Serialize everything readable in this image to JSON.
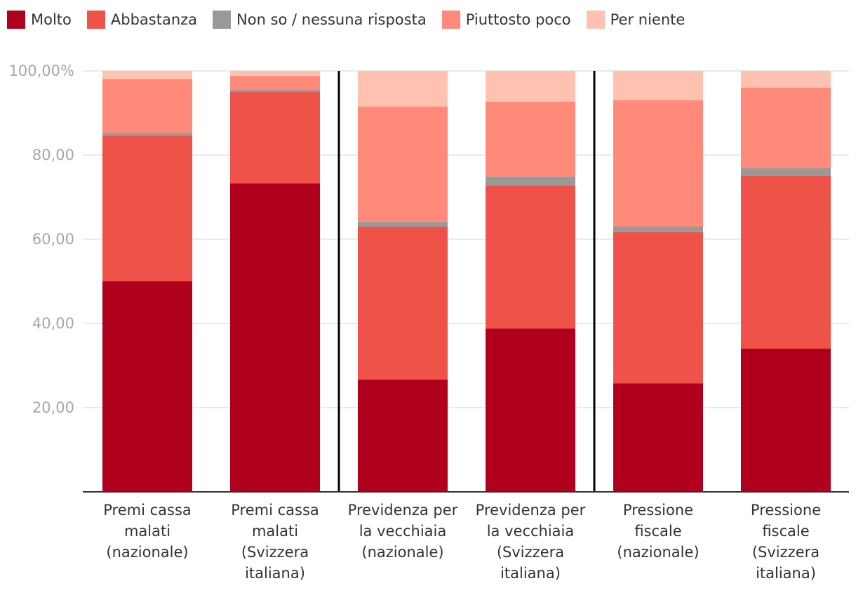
{
  "chart_data": {
    "type": "bar",
    "stacked": true,
    "categories": [
      [
        "Premi cassa",
        "malati",
        "(nazionale)"
      ],
      [
        "Premi cassa",
        "malati",
        "(Svizzera",
        "italiana)"
      ],
      [
        "Previdenza per",
        "la vecchiaia",
        "(nazionale)"
      ],
      [
        "Previdenza per",
        "la vecchiaia",
        "(Svizzera",
        "italiana)"
      ],
      [
        "Pressione",
        "fiscale",
        "(nazionale)"
      ],
      [
        "Pressione",
        "fiscale",
        "(Svizzera",
        "italiana)"
      ]
    ],
    "series": [
      {
        "name": "Molto",
        "color": "#b0001e",
        "values": [
          50.0,
          73.3,
          26.7,
          38.8,
          25.8,
          34.0
        ]
      },
      {
        "name": "Abbastanza",
        "color": "#ee5249",
        "values": [
          34.6,
          21.7,
          36.3,
          34.0,
          35.9,
          41.0
        ]
      },
      {
        "name": "Non so / nessuna risposta",
        "color": "#999999",
        "values": [
          0.7,
          0.6,
          1.2,
          2.1,
          1.3,
          1.9
        ]
      },
      {
        "name": "Piuttosto poco",
        "color": "#ff8a7a",
        "values": [
          12.7,
          3.2,
          27.3,
          17.8,
          30.0,
          19.1
        ]
      },
      {
        "name": "Per niente",
        "color": "#ffc2b0",
        "values": [
          2.0,
          1.2,
          8.5,
          7.3,
          7.0,
          4.0
        ]
      }
    ],
    "legend_order": [
      0,
      1,
      2,
      3,
      4
    ],
    "y_ticks": [
      {
        "value": 20,
        "label": "20,00"
      },
      {
        "value": 40,
        "label": "40,00"
      },
      {
        "value": 60,
        "label": "60,00"
      },
      {
        "value": 80,
        "label": "80,00"
      },
      {
        "value": 100,
        "label": "100,00%"
      }
    ],
    "ylim": [
      0,
      100
    ],
    "group_dividers_after": [
      1,
      3
    ],
    "grid": true,
    "legend_position": "top-left"
  }
}
